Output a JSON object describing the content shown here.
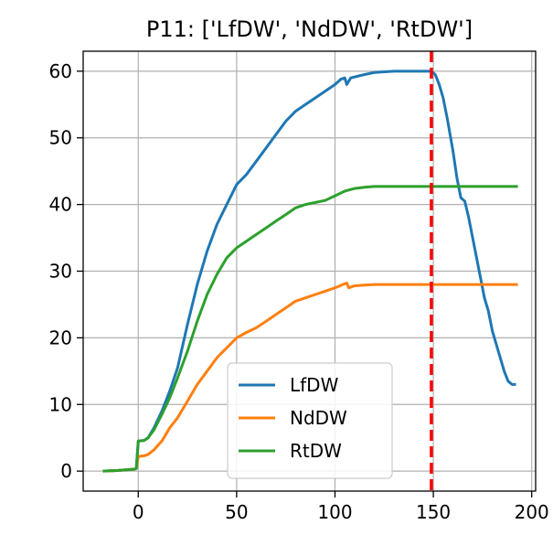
{
  "chart_data": {
    "type": "line",
    "title": "P11: ['LfDW', 'NdDW', 'RtDW']",
    "xlabel": "",
    "ylabel": "",
    "xlim": [
      -28,
      202
    ],
    "ylim": [
      -3,
      63
    ],
    "xticks": [
      0,
      50,
      100,
      150,
      200
    ],
    "yticks": [
      0,
      10,
      20,
      30,
      40,
      50,
      60
    ],
    "grid": true,
    "legend_position": "lower center",
    "vline": {
      "x": 149,
      "color": "#ff0000",
      "style": "dashed"
    },
    "series": [
      {
        "name": "LfDW",
        "color": "#1f77b4",
        "points": [
          [
            -18,
            0
          ],
          [
            -10,
            0.1
          ],
          [
            -2,
            0.3
          ],
          [
            -1,
            0.4
          ],
          [
            0,
            4.5
          ],
          [
            3,
            4.6
          ],
          [
            5,
            5
          ],
          [
            8,
            6.5
          ],
          [
            12,
            9
          ],
          [
            16,
            12
          ],
          [
            20,
            15.5
          ],
          [
            25,
            22
          ],
          [
            30,
            28
          ],
          [
            35,
            33
          ],
          [
            40,
            37
          ],
          [
            45,
            40
          ],
          [
            50,
            43
          ],
          [
            55,
            44.5
          ],
          [
            60,
            46.5
          ],
          [
            65,
            48.5
          ],
          [
            70,
            50.5
          ],
          [
            75,
            52.5
          ],
          [
            80,
            54
          ],
          [
            85,
            55
          ],
          [
            90,
            56
          ],
          [
            95,
            57
          ],
          [
            100,
            58
          ],
          [
            103,
            58.8
          ],
          [
            105,
            59
          ],
          [
            106,
            58
          ],
          [
            108,
            59
          ],
          [
            115,
            59.5
          ],
          [
            120,
            59.8
          ],
          [
            130,
            60
          ],
          [
            140,
            60
          ],
          [
            149,
            60
          ],
          [
            151,
            59.5
          ],
          [
            153,
            58
          ],
          [
            155,
            56
          ],
          [
            157,
            53
          ],
          [
            160,
            48
          ],
          [
            162,
            44
          ],
          [
            164,
            41
          ],
          [
            166,
            40.5
          ],
          [
            168,
            38
          ],
          [
            170,
            35
          ],
          [
            172,
            32
          ],
          [
            174,
            29
          ],
          [
            176,
            26
          ],
          [
            178,
            24
          ],
          [
            180,
            21
          ],
          [
            182,
            19
          ],
          [
            184,
            17
          ],
          [
            186,
            15
          ],
          [
            188,
            13.5
          ],
          [
            190,
            13
          ],
          [
            192,
            13
          ]
        ]
      },
      {
        "name": "NdDW",
        "color": "#ff7f0e",
        "points": [
          [
            -18,
            0
          ],
          [
            -10,
            0.1
          ],
          [
            -2,
            0.3
          ],
          [
            -1,
            0.4
          ],
          [
            0,
            2.2
          ],
          [
            3,
            2.3
          ],
          [
            5,
            2.5
          ],
          [
            8,
            3.2
          ],
          [
            12,
            4.5
          ],
          [
            16,
            6.5
          ],
          [
            20,
            8
          ],
          [
            25,
            10.5
          ],
          [
            30,
            13
          ],
          [
            35,
            15
          ],
          [
            40,
            17
          ],
          [
            45,
            18.5
          ],
          [
            50,
            20
          ],
          [
            55,
            20.8
          ],
          [
            60,
            21.5
          ],
          [
            65,
            22.5
          ],
          [
            70,
            23.5
          ],
          [
            75,
            24.5
          ],
          [
            80,
            25.5
          ],
          [
            85,
            26
          ],
          [
            90,
            26.5
          ],
          [
            95,
            27
          ],
          [
            100,
            27.5
          ],
          [
            104,
            28
          ],
          [
            106,
            28.2
          ],
          [
            107,
            27.5
          ],
          [
            110,
            27.8
          ],
          [
            115,
            27.9
          ],
          [
            120,
            28
          ],
          [
            130,
            28
          ],
          [
            140,
            28
          ],
          [
            150,
            28
          ],
          [
            160,
            28
          ],
          [
            170,
            28
          ],
          [
            180,
            28
          ],
          [
            193,
            28
          ]
        ]
      },
      {
        "name": "RtDW",
        "color": "#2ca02c",
        "points": [
          [
            -18,
            0
          ],
          [
            -10,
            0.1
          ],
          [
            -2,
            0.3
          ],
          [
            -1,
            0.4
          ],
          [
            0,
            4.5
          ],
          [
            3,
            4.6
          ],
          [
            5,
            5
          ],
          [
            8,
            6.2
          ],
          [
            12,
            8.5
          ],
          [
            16,
            11
          ],
          [
            20,
            14
          ],
          [
            25,
            18
          ],
          [
            30,
            22.5
          ],
          [
            35,
            26.5
          ],
          [
            40,
            29.5
          ],
          [
            45,
            32
          ],
          [
            50,
            33.5
          ],
          [
            55,
            34.5
          ],
          [
            60,
            35.5
          ],
          [
            65,
            36.5
          ],
          [
            70,
            37.5
          ],
          [
            75,
            38.5
          ],
          [
            80,
            39.5
          ],
          [
            85,
            40
          ],
          [
            90,
            40.3
          ],
          [
            95,
            40.6
          ],
          [
            100,
            41.3
          ],
          [
            105,
            42
          ],
          [
            110,
            42.4
          ],
          [
            115,
            42.6
          ],
          [
            120,
            42.7
          ],
          [
            130,
            42.7
          ],
          [
            140,
            42.7
          ],
          [
            150,
            42.7
          ],
          [
            160,
            42.7
          ],
          [
            170,
            42.7
          ],
          [
            180,
            42.7
          ],
          [
            193,
            42.7
          ]
        ]
      }
    ]
  }
}
